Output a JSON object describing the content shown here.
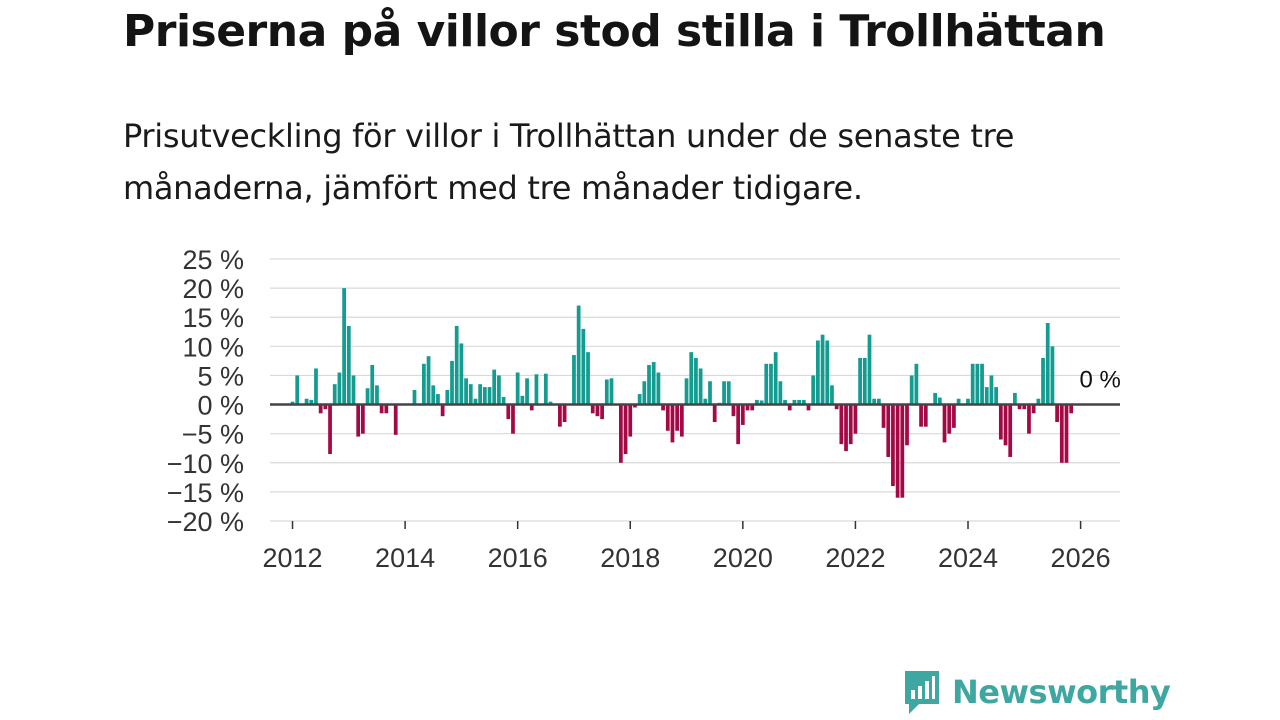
{
  "colors": {
    "positive": "#149c91",
    "negative": "#a30a45",
    "grid": "#d9d9d9",
    "zero_line": "#444444",
    "brand": "#3fa7a1"
  },
  "brand": {
    "name": "Newsworthy",
    "icon": "newsworthy-bar-chart-icon"
  },
  "chart_data": {
    "type": "bar",
    "title": "Priserna på villor stod stilla i Trollhättan",
    "subtitle": "Prisutveckling för villor i Trollhättan under de senaste tre månaderna, jämfört med tre månader tidigare.",
    "xlabel": "",
    "ylabel": "",
    "ylim": [
      -20,
      25
    ],
    "xlim": [
      2011.6,
      2026.7
    ],
    "y_ticks": [
      25,
      20,
      15,
      10,
      5,
      0,
      -5,
      -10,
      -15,
      -20
    ],
    "y_tick_labels": [
      "25 %",
      "20 %",
      "15 %",
      "10 %",
      "5 %",
      "0 %",
      "−5 %",
      "−10 %",
      "−15 %",
      "−20 %"
    ],
    "x_ticks": [
      2012,
      2014,
      2016,
      2018,
      2020,
      2022,
      2024,
      2026
    ],
    "x_tick_labels": [
      "2012",
      "2014",
      "2016",
      "2018",
      "2020",
      "2022",
      "2024",
      "2026"
    ],
    "grid": true,
    "annotation": {
      "text": "0 %",
      "x": 2025.75,
      "y": 0
    },
    "series": [
      {
        "name": "Prisutveckling",
        "start": 2012.0,
        "step": 0.08333,
        "values": [
          0.5,
          5,
          0,
          1,
          0.8,
          6.2,
          -1.5,
          -0.8,
          -8.5,
          3.5,
          5.5,
          20,
          13.5,
          5,
          -5.5,
          -5,
          2.8,
          6.8,
          3.3,
          -1.5,
          -1.5,
          0,
          -5.2,
          0,
          0,
          0,
          2.5,
          0,
          7,
          8.3,
          3.3,
          1.8,
          -2,
          2.5,
          7.5,
          13.5,
          10.5,
          4.5,
          3.5,
          1,
          3.5,
          3,
          3,
          6,
          5,
          1.3,
          -2.5,
          -5,
          5.5,
          1.5,
          4.5,
          -1,
          5.2,
          0,
          5.3,
          0.5,
          0,
          -3.8,
          -3,
          0,
          8.5,
          17,
          13,
          9,
          -1.5,
          -2,
          -2.5,
          4.3,
          4.5,
          0,
          -10,
          -8.5,
          -5.5,
          -0.5,
          1.8,
          4,
          6.8,
          7.3,
          5.5,
          -1,
          -4.5,
          -6.5,
          -4.5,
          -5.5,
          4.5,
          9,
          8,
          6.2,
          1,
          4,
          -3,
          0.3,
          4,
          4,
          -2,
          -6.8,
          -3.5,
          -1,
          -1,
          0.8,
          0.7,
          7,
          7,
          9,
          4,
          0.8,
          -1,
          0.8,
          0.8,
          0.8,
          -1,
          5,
          11,
          12,
          11,
          3.3,
          -0.8,
          -6.8,
          -8,
          -6.8,
          -5,
          8,
          8,
          12,
          1,
          1,
          -4,
          -9,
          -14,
          -16,
          -16,
          -7,
          5,
          7,
          -3.8,
          -3.8,
          0,
          2,
          1.2,
          -6.5,
          -5,
          -4,
          1,
          0,
          1,
          7,
          7,
          7,
          3,
          5,
          3,
          -6,
          -7,
          -9,
          2,
          -0.8,
          -0.8,
          -5,
          -1.5,
          1,
          8,
          14,
          10,
          -3,
          -10,
          -10,
          -1.5
        ]
      }
    ]
  }
}
